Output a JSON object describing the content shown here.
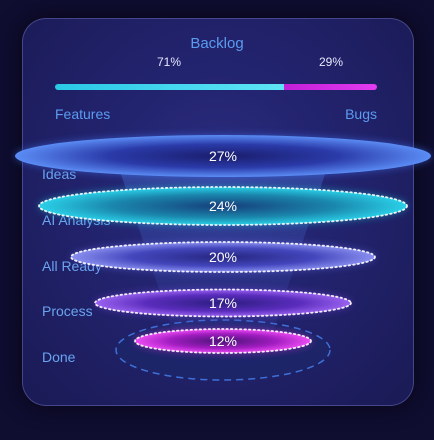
{
  "backlog": {
    "title": "Backlog",
    "features_label": "Features",
    "bugs_label": "Bugs",
    "features_pct_text": "71%",
    "bugs_pct_text": "29%",
    "features_share": 71,
    "bugs_share": 29
  },
  "chart_data": {
    "type": "funnel",
    "categories": [
      "Ideas",
      "AI Analysis",
      "All Ready",
      "Process",
      "Done"
    ],
    "values": [
      27,
      24,
      20,
      17,
      12
    ],
    "value_labels": [
      "27%",
      "24%",
      "20%",
      "17%",
      "12%"
    ],
    "colors": [
      "#3f6ee8",
      "#1fb7cf",
      "#5f62dd",
      "#7640d8",
      "#cc2fd6"
    ]
  },
  "colors": {
    "features": "#2fd3f0",
    "bugs": "#d82ae6",
    "label": "#5b9bf0",
    "card": "#232470"
  }
}
